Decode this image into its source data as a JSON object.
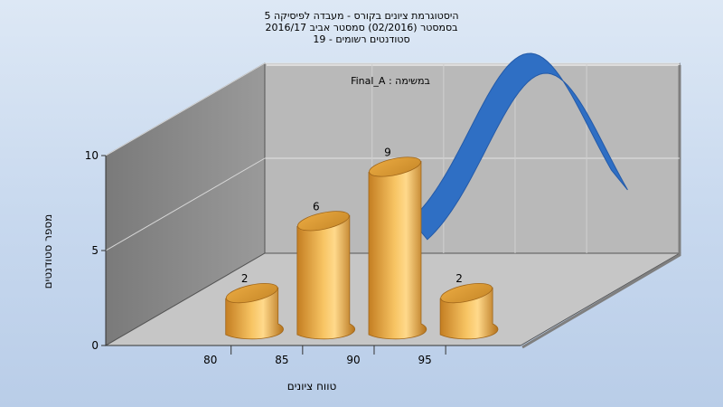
{
  "chart_data": {
    "type": "bar",
    "title_lines": [
      "היסטוגרמת ציונים בקורס - מעבדה לפיסיקה 5",
      "בסמסטר  (02/2016)  סמסטר אביב 2016/17",
      "סטודנטים רשומים - 19"
    ],
    "annotation": "במשימה : Final_A",
    "xlabel": "טווח ציונים",
    "ylabel": "מספר סטודנטים",
    "x_ticks": [
      "80",
      "85",
      "90",
      "95"
    ],
    "y_ticks": [
      "0",
      "5",
      "10"
    ],
    "ylim": [
      0,
      10
    ],
    "bars": [
      {
        "x": 80,
        "value": 2,
        "label": "2"
      },
      {
        "x": 85,
        "value": 6,
        "label": "6"
      },
      {
        "x": 90,
        "value": 9,
        "label": "9"
      },
      {
        "x": 95,
        "value": 2,
        "label": "2"
      }
    ],
    "curve": {
      "type": "line",
      "style": "3d-ribbon",
      "shape": "normal-curve"
    },
    "grid": true,
    "colors": {
      "bar": "#f0b050",
      "bar_top": "#f7c964",
      "curve": "#2f6fc4",
      "wall": "#8a8a8a",
      "back": "#b8b8b8"
    }
  }
}
